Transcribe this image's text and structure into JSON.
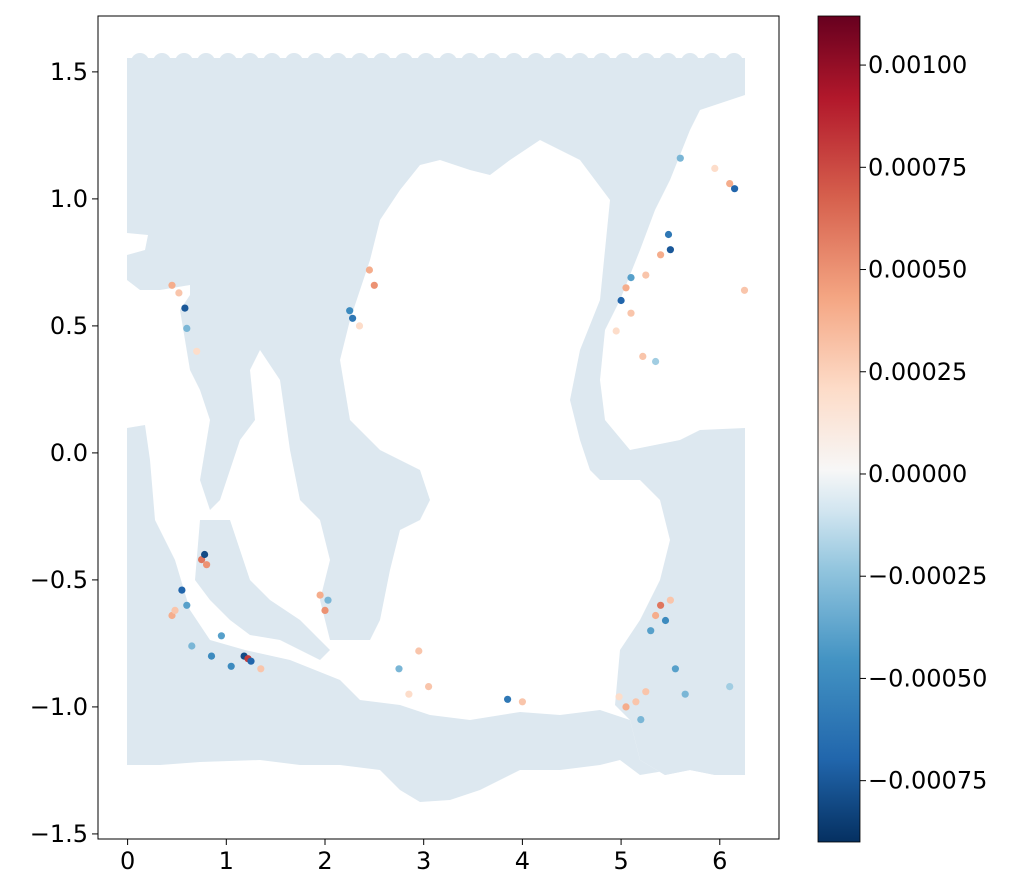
{
  "chart_data": {
    "type": "scatter",
    "title": "",
    "xlabel": "",
    "ylabel": "",
    "xlim": [
      -0.3,
      6.6
    ],
    "ylim": [
      -1.52,
      1.72
    ],
    "x_ticks": [
      {
        "value": 0,
        "label": "0"
      },
      {
        "value": 1,
        "label": "1"
      },
      {
        "value": 2,
        "label": "2"
      },
      {
        "value": 3,
        "label": "3"
      },
      {
        "value": 4,
        "label": "4"
      },
      {
        "value": 5,
        "label": "5"
      },
      {
        "value": 6,
        "label": "6"
      }
    ],
    "y_ticks": [
      {
        "value": 1.5,
        "label": "1.5"
      },
      {
        "value": 1.0,
        "label": "1.0"
      },
      {
        "value": 0.5,
        "label": "0.5"
      },
      {
        "value": 0.0,
        "label": "0.0"
      },
      {
        "value": -0.5,
        "label": "−0.5"
      },
      {
        "value": -1.0,
        "label": "−1.0"
      },
      {
        "value": -1.5,
        "label": "−1.5"
      }
    ],
    "grid": false,
    "colorbar": {
      "colormap": "RdBu_r",
      "range": [
        -0.0009,
        0.00112
      ],
      "ticks": [
        {
          "value": 0.001,
          "label": "0.00100"
        },
        {
          "value": 0.00075,
          "label": "0.00075"
        },
        {
          "value": 0.0005,
          "label": "0.00050"
        },
        {
          "value": 0.00025,
          "label": "0.00025"
        },
        {
          "value": 0.0,
          "label": "0.00000"
        },
        {
          "value": -0.00025,
          "label": "−0.00025"
        },
        {
          "value": -0.0005,
          "label": "−0.00050"
        },
        {
          "value": -0.00075,
          "label": "−0.00075"
        }
      ]
    },
    "background_value": -4e-05,
    "points": [
      {
        "x": 0.58,
        "y": 0.57,
        "v": -0.00075
      },
      {
        "x": 0.45,
        "y": 0.66,
        "v": 0.0004
      },
      {
        "x": 0.52,
        "y": 0.63,
        "v": 0.0003
      },
      {
        "x": 0.7,
        "y": 0.4,
        "v": 0.0002
      },
      {
        "x": 0.6,
        "y": 0.49,
        "v": -0.0003
      },
      {
        "x": 2.28,
        "y": 0.53,
        "v": -0.0006
      },
      {
        "x": 2.25,
        "y": 0.56,
        "v": -0.0005
      },
      {
        "x": 2.45,
        "y": 0.72,
        "v": 0.0004
      },
      {
        "x": 2.5,
        "y": 0.66,
        "v": 0.0005
      },
      {
        "x": 2.35,
        "y": 0.5,
        "v": 0.0002
      },
      {
        "x": 5.5,
        "y": 0.8,
        "v": -0.00075
      },
      {
        "x": 5.48,
        "y": 0.86,
        "v": -0.0006
      },
      {
        "x": 5.4,
        "y": 0.78,
        "v": 0.0004
      },
      {
        "x": 5.25,
        "y": 0.7,
        "v": 0.0003
      },
      {
        "x": 5.0,
        "y": 0.6,
        "v": -0.0007
      },
      {
        "x": 5.05,
        "y": 0.65,
        "v": 0.0004
      },
      {
        "x": 5.1,
        "y": 0.55,
        "v": 0.0003
      },
      {
        "x": 4.95,
        "y": 0.48,
        "v": 0.0002
      },
      {
        "x": 5.1,
        "y": 0.69,
        "v": -0.0004
      },
      {
        "x": 5.22,
        "y": 0.38,
        "v": 0.0003
      },
      {
        "x": 5.35,
        "y": 0.36,
        "v": -0.0002
      },
      {
        "x": 6.1,
        "y": 1.06,
        "v": 0.0004
      },
      {
        "x": 6.15,
        "y": 1.04,
        "v": -0.0007
      },
      {
        "x": 5.6,
        "y": 1.16,
        "v": -0.0003
      },
      {
        "x": 6.25,
        "y": 0.64,
        "v": 0.0003
      },
      {
        "x": 5.95,
        "y": 1.12,
        "v": 0.0002
      },
      {
        "x": 0.75,
        "y": -0.42,
        "v": 0.0006
      },
      {
        "x": 0.8,
        "y": -0.44,
        "v": 0.0005
      },
      {
        "x": 0.78,
        "y": -0.4,
        "v": -0.0008
      },
      {
        "x": 0.55,
        "y": -0.54,
        "v": -0.0007
      },
      {
        "x": 0.45,
        "y": -0.64,
        "v": 0.0004
      },
      {
        "x": 0.48,
        "y": -0.62,
        "v": 0.0003
      },
      {
        "x": 0.6,
        "y": -0.6,
        "v": -0.0004
      },
      {
        "x": 0.85,
        "y": -0.8,
        "v": -0.0005
      },
      {
        "x": 0.95,
        "y": -0.72,
        "v": -0.0004
      },
      {
        "x": 1.18,
        "y": -0.8,
        "v": -0.0008
      },
      {
        "x": 1.22,
        "y": -0.81,
        "v": 0.0008
      },
      {
        "x": 1.25,
        "y": -0.82,
        "v": -0.0007
      },
      {
        "x": 1.05,
        "y": -0.84,
        "v": -0.0005
      },
      {
        "x": 1.35,
        "y": -0.85,
        "v": 0.0003
      },
      {
        "x": 0.65,
        "y": -0.76,
        "v": -0.0003
      },
      {
        "x": 1.95,
        "y": -0.56,
        "v": 0.0004
      },
      {
        "x": 2.0,
        "y": -0.62,
        "v": 0.0005
      },
      {
        "x": 2.03,
        "y": -0.58,
        "v": -0.0003
      },
      {
        "x": 2.95,
        "y": -0.78,
        "v": 0.0003
      },
      {
        "x": 3.05,
        "y": -0.92,
        "v": 0.0003
      },
      {
        "x": 2.85,
        "y": -0.95,
        "v": 0.0002
      },
      {
        "x": 2.75,
        "y": -0.85,
        "v": -0.0003
      },
      {
        "x": 3.85,
        "y": -0.97,
        "v": -0.0006
      },
      {
        "x": 4.0,
        "y": -0.98,
        "v": 0.0003
      },
      {
        "x": 5.4,
        "y": -0.6,
        "v": 0.0006
      },
      {
        "x": 5.35,
        "y": -0.64,
        "v": 0.0004
      },
      {
        "x": 5.45,
        "y": -0.66,
        "v": -0.0005
      },
      {
        "x": 5.3,
        "y": -0.7,
        "v": -0.0004
      },
      {
        "x": 5.5,
        "y": -0.58,
        "v": 0.0003
      },
      {
        "x": 5.55,
        "y": -0.85,
        "v": -0.0004
      },
      {
        "x": 5.25,
        "y": -0.94,
        "v": 0.0003
      },
      {
        "x": 5.15,
        "y": -0.98,
        "v": 0.0003
      },
      {
        "x": 5.05,
        "y": -1.0,
        "v": 0.0004
      },
      {
        "x": 4.98,
        "y": -0.96,
        "v": 0.0002
      },
      {
        "x": 5.2,
        "y": -1.05,
        "v": -0.0003
      },
      {
        "x": 5.65,
        "y": -0.95,
        "v": -0.0003
      },
      {
        "x": 6.1,
        "y": -0.92,
        "v": -0.0002
      }
    ]
  }
}
